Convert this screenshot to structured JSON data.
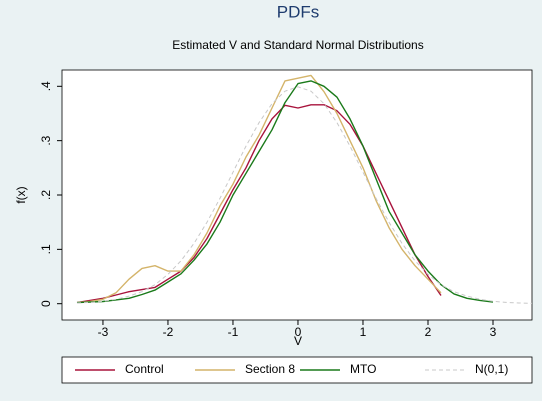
{
  "chart_data": {
    "type": "line",
    "title": "PDFs",
    "subtitle": "Estimated V and Standard Normal Distributions",
    "x_label": "V",
    "y_label": "f(x)",
    "x": [
      -3.4,
      -3.2,
      -3.0,
      -2.8,
      -2.6,
      -2.4,
      -2.2,
      -2.0,
      -1.8,
      -1.6,
      -1.4,
      -1.2,
      -1.0,
      -0.8,
      -0.6,
      -0.4,
      -0.2,
      0,
      0.2,
      0.4,
      0.6,
      0.8,
      1.0,
      1.2,
      1.4,
      1.6,
      1.8,
      2.0,
      2.2,
      2.4,
      2.6,
      2.8,
      3.0,
      3.2,
      3.4,
      3.6
    ],
    "series": [
      {
        "name": "Control",
        "color": "#a8133c",
        "dashed": false,
        "values": [
          0.002,
          0.006,
          0.01,
          0.016,
          0.022,
          0.026,
          0.03,
          0.045,
          0.06,
          0.085,
          0.12,
          0.165,
          0.21,
          0.25,
          0.3,
          0.34,
          0.365,
          0.36,
          0.366,
          0.366,
          0.355,
          0.33,
          0.29,
          0.24,
          0.19,
          0.14,
          0.09,
          0.05,
          0.015,
          null,
          null,
          null,
          null,
          null,
          null,
          null
        ]
      },
      {
        "name": "Section 8",
        "color": "#d4b46a",
        "dashed": false,
        "values": [
          0.002,
          0.004,
          0.008,
          0.02,
          0.045,
          0.065,
          0.07,
          0.06,
          0.06,
          0.09,
          0.13,
          0.18,
          0.22,
          0.27,
          0.31,
          0.36,
          0.41,
          0.415,
          0.42,
          0.39,
          0.35,
          0.3,
          0.25,
          0.19,
          0.14,
          0.1,
          0.07,
          0.045,
          0.02,
          null,
          null,
          null,
          null,
          null,
          null,
          null
        ]
      },
      {
        "name": "MTO",
        "color": "#1a7a1a",
        "dashed": false,
        "values": [
          0.002,
          0.003,
          0.004,
          0.007,
          0.01,
          0.017,
          0.025,
          0.04,
          0.055,
          0.08,
          0.11,
          0.15,
          0.2,
          0.24,
          0.28,
          0.32,
          0.37,
          0.405,
          0.41,
          0.4,
          0.38,
          0.34,
          0.29,
          0.23,
          0.17,
          0.13,
          0.09,
          0.06,
          0.035,
          0.018,
          0.01,
          0.006,
          0.003,
          null,
          null,
          null
        ]
      },
      {
        "name": "N(0,1)",
        "color": "#c8c8c8",
        "dashed": true,
        "values": [
          0.0012,
          0.0024,
          0.0044,
          0.008,
          0.014,
          0.022,
          0.035,
          0.054,
          0.079,
          0.111,
          0.15,
          0.194,
          0.242,
          0.29,
          0.333,
          0.368,
          0.391,
          0.399,
          0.391,
          0.368,
          0.333,
          0.29,
          0.242,
          0.194,
          0.15,
          0.111,
          0.079,
          0.054,
          0.035,
          0.022,
          0.014,
          0.008,
          0.0044,
          0.0024,
          0.0012,
          0.0006
        ]
      }
    ],
    "xlim": [
      -3.63,
      3.6
    ],
    "ylim": [
      -0.03,
      0.43
    ],
    "xticks": [
      -3,
      -2,
      -1,
      0,
      1,
      2,
      3
    ],
    "yticks": [
      0,
      {
        "value": 0.1,
        "label": ".1"
      },
      {
        "value": 0.2,
        "label": ".2"
      },
      {
        "value": 0.3,
        "label": ".3"
      },
      {
        "value": 0.4,
        "label": ".4"
      }
    ],
    "grid": false
  }
}
